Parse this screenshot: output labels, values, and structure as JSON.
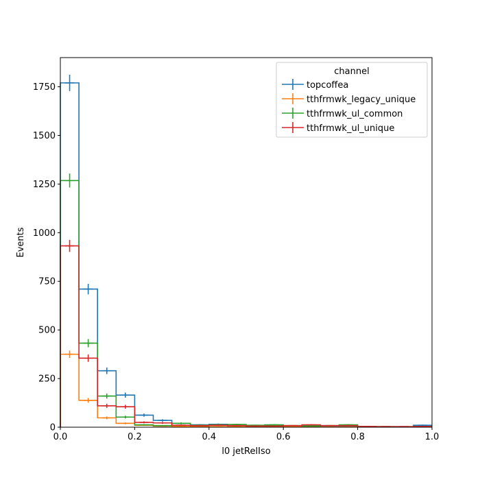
{
  "chart_data": {
    "type": "step-histogram",
    "xlabel": "l0 jetRelIso",
    "ylabel": "Events",
    "xlim": [
      0,
      1
    ],
    "ylim": [
      0,
      1900
    ],
    "xticks": [
      "0.0",
      "0.2",
      "0.4",
      "0.6",
      "0.8",
      "1.0"
    ],
    "yticks": [
      "0",
      "250",
      "500",
      "750",
      "1000",
      "1250",
      "1500",
      "1750"
    ],
    "grid": false,
    "legend": {
      "title": "channel",
      "placement": "top-right"
    },
    "bin_edges": [
      0,
      0.05,
      0.1,
      0.15,
      0.2,
      0.25,
      0.3,
      0.35,
      0.4,
      0.45,
      0.5,
      0.55,
      0.6,
      0.65,
      0.7,
      0.75,
      0.8,
      0.85,
      0.9,
      0.95,
      1.0
    ],
    "series": [
      {
        "name": "topcoffea",
        "color": "#1f77b4",
        "values": [
          1770,
          710,
          290,
          165,
          62,
          35,
          20,
          12,
          15,
          10,
          8,
          8,
          6,
          8,
          5,
          6,
          4,
          3,
          3,
          10
        ],
        "errors": [
          42,
          27,
          17,
          13,
          8,
          6,
          4.5,
          3.5,
          3.9,
          3.2,
          2.8,
          2.8,
          2.4,
          2.8,
          2.2,
          2.4,
          2,
          1.7,
          1.7,
          3.2
        ]
      },
      {
        "name": "tthfrmwk_legacy_unique",
        "color": "#ff7f0e",
        "values": [
          375,
          138,
          48,
          20,
          10,
          6,
          4,
          3,
          3,
          2,
          2,
          2,
          2,
          2,
          1,
          1,
          1,
          1,
          1,
          2
        ],
        "errors": [
          19,
          12,
          7,
          4.5,
          3.2,
          2.4,
          2,
          1.7,
          1.7,
          1.4,
          1.4,
          1.4,
          1.4,
          1.4,
          1,
          1,
          1,
          1,
          1,
          1.4
        ]
      },
      {
        "name": "tthfrmwk_ul_common",
        "color": "#2ca02c",
        "values": [
          1268,
          432,
          160,
          52,
          12,
          8,
          20,
          10,
          12,
          14,
          10,
          12,
          8,
          6,
          8,
          12,
          4,
          3,
          2,
          4
        ],
        "errors": [
          36,
          21,
          13,
          7,
          3.5,
          2.8,
          4.5,
          3.2,
          3.5,
          3.7,
          3.2,
          3.5,
          2.8,
          2.4,
          2.8,
          3.5,
          2,
          1.7,
          1.4,
          2
        ]
      },
      {
        "name": "tthfrmwk_ul_unique",
        "color": "#d62728",
        "values": [
          932,
          355,
          110,
          105,
          25,
          22,
          10,
          8,
          10,
          8,
          6,
          6,
          8,
          12,
          8,
          8,
          4,
          3,
          3,
          4
        ],
        "errors": [
          31,
          19,
          10.5,
          10,
          5,
          4.7,
          3.2,
          2.8,
          3.2,
          2.8,
          2.4,
          2.4,
          2.8,
          3.5,
          2.8,
          2.8,
          2,
          1.7,
          1.7,
          2
        ]
      }
    ]
  }
}
